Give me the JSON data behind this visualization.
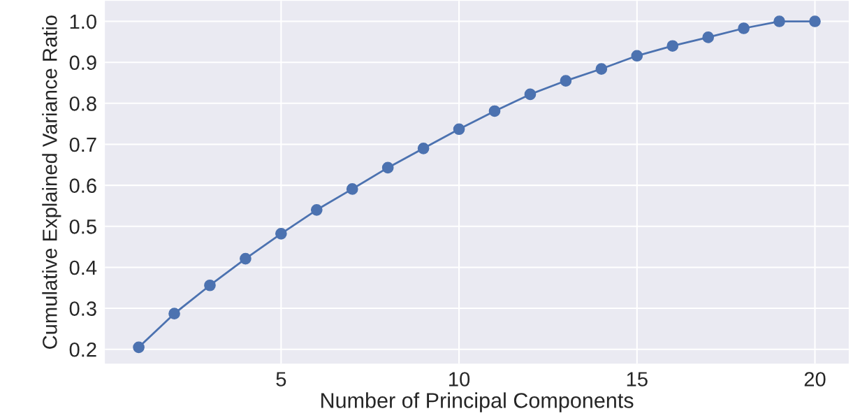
{
  "chart_data": {
    "type": "line",
    "xlabel": "Number of Principal Components",
    "ylabel": "Cumulative Explained Variance Ratio",
    "x": [
      1,
      2,
      3,
      4,
      5,
      6,
      7,
      8,
      9,
      10,
      11,
      12,
      13,
      14,
      15,
      16,
      17,
      18,
      19,
      20
    ],
    "series": [
      {
        "color": "#4c72b0",
        "values": [
          0.205,
          0.287,
          0.356,
          0.421,
          0.482,
          0.54,
          0.591,
          0.643,
          0.69,
          0.737,
          0.781,
          0.822,
          0.855,
          0.884,
          0.916,
          0.94,
          0.961,
          0.983,
          1.0,
          1.0
        ]
      }
    ],
    "xlim": [
      0.05,
      20.95
    ],
    "ylim": [
      0.165,
      1.05
    ],
    "xticks": [
      5,
      10,
      15,
      20
    ],
    "yticks": [
      {
        "value": 0.2,
        "label": "0.2"
      },
      {
        "value": 0.3,
        "label": "0.3"
      },
      {
        "value": 0.4,
        "label": "0.4"
      },
      {
        "value": 0.5,
        "label": "0.5"
      },
      {
        "value": 0.6,
        "label": "0.6"
      },
      {
        "value": 0.7,
        "label": "0.7"
      },
      {
        "value": 0.8,
        "label": "0.8"
      },
      {
        "value": 0.9,
        "label": "0.9"
      },
      {
        "value": 1.0,
        "label": "1.0"
      }
    ],
    "grid": true,
    "marker": "circle",
    "line_style": "solid"
  }
}
